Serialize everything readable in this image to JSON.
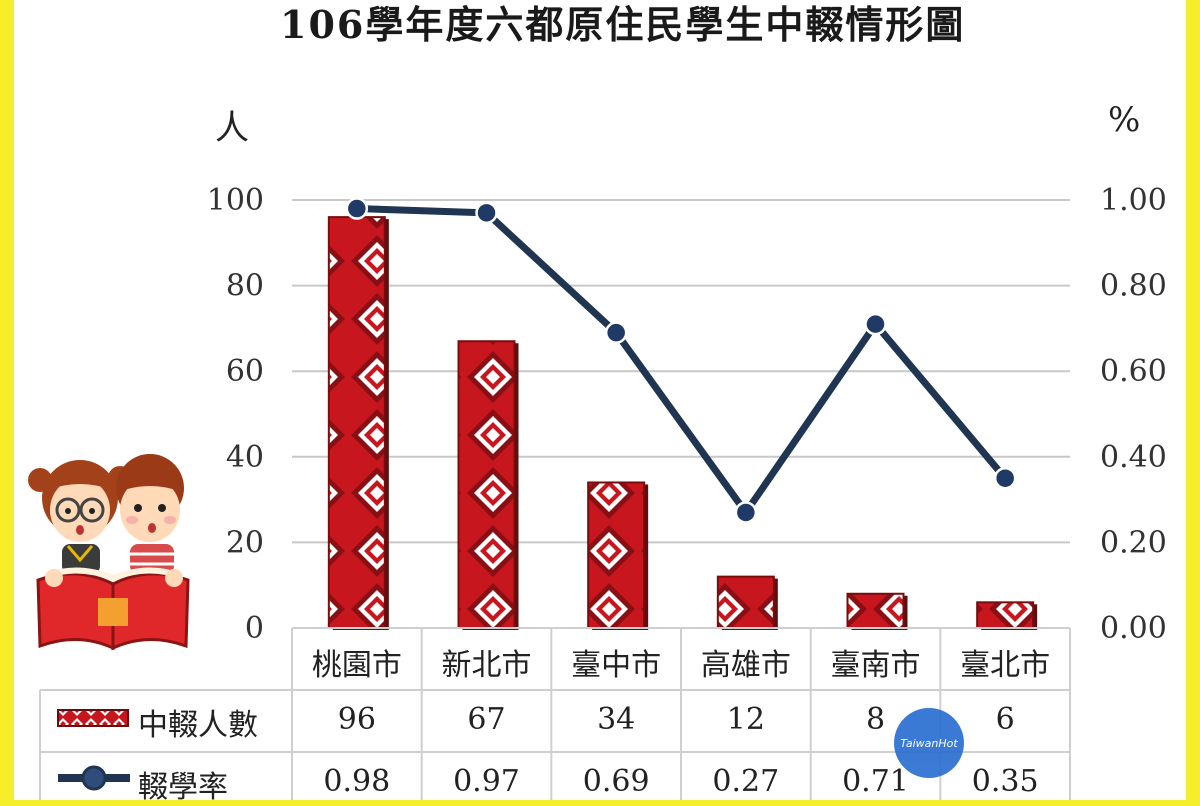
{
  "title": "106學年度六都原住民學生中輟情形圖",
  "left_unit": "人",
  "right_unit": "%",
  "watermark": "TaiwanHot",
  "legend": {
    "bar_label": "中輟人數",
    "line_label": "輟學率"
  },
  "colors": {
    "bar_red": "#c8161e",
    "bar_dark": "#4a0a0a",
    "line_navy": "#1f3552",
    "grid": "#c8c8c8",
    "background_yellow": "#f5ee2a"
  },
  "chart_data": {
    "type": "bar",
    "categories": [
      "桃園市",
      "新北市",
      "臺中市",
      "高雄市",
      "臺南市",
      "臺北市"
    ],
    "series": [
      {
        "name": "中輟人數",
        "type": "bar",
        "axis": "left",
        "values": [
          96,
          67,
          34,
          12,
          8,
          6
        ]
      },
      {
        "name": "輟學率",
        "type": "line",
        "axis": "right",
        "values": [
          0.98,
          0.97,
          0.69,
          0.27,
          0.71,
          0.35
        ]
      }
    ],
    "left_axis": {
      "ylim": [
        0,
        100
      ],
      "ticks": [
        "0",
        "20",
        "40",
        "60",
        "80",
        "100"
      ]
    },
    "right_axis": {
      "ylim": [
        0,
        1.0
      ],
      "ticks": [
        "0.00",
        "0.20",
        "0.40",
        "0.60",
        "0.80",
        "1.00"
      ]
    },
    "table": {
      "bar_values": [
        "96",
        "67",
        "34",
        "12",
        "8",
        "6"
      ],
      "line_values": [
        "0.98",
        "0.97",
        "0.69",
        "0.27",
        "0.71",
        "0.35"
      ]
    },
    "grid": true
  }
}
